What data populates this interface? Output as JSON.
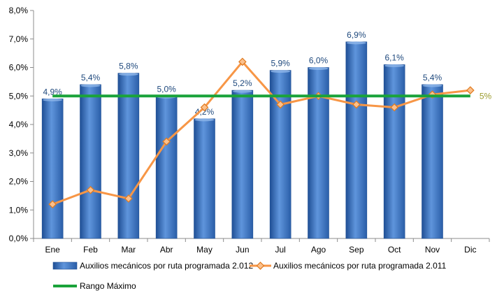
{
  "chart_data": {
    "type": "bar",
    "categories": [
      "Ene",
      "Feb",
      "Mar",
      "Abr",
      "May",
      "Jun",
      "Jul",
      "Ago",
      "Sep",
      "Oct",
      "Nov",
      "Dic"
    ],
    "ylim": [
      0,
      8
    ],
    "y_ticks": [
      "0,0%",
      "1,0%",
      "2,0%",
      "3,0%",
      "4,0%",
      "5,0%",
      "6,0%",
      "7,0%",
      "8,0%"
    ],
    "y_tick_values": [
      0,
      1,
      2,
      3,
      4,
      5,
      6,
      7,
      8
    ],
    "grid": false,
    "legend_position": "bottom",
    "series": [
      {
        "name": "Auxilios mecánicos por ruta programada 2.012",
        "type": "bar",
        "color": "#3a75c4",
        "values": [
          4.9,
          5.4,
          5.8,
          5.0,
          4.2,
          5.2,
          5.9,
          6.0,
          6.9,
          6.1,
          5.4,
          null
        ],
        "labels": [
          "4,9%",
          "5,4%",
          "5,8%",
          "5,0%",
          "4,2%",
          "5,2%",
          "5,9%",
          "6,0%",
          "6,9%",
          "6,1%",
          "5,4%",
          ""
        ]
      },
      {
        "name": "Auxilios mecánicos por ruta programada 2.011",
        "type": "line",
        "color": "#f79646",
        "values": [
          1.2,
          1.7,
          1.4,
          3.4,
          4.6,
          6.2,
          4.7,
          5.0,
          4.7,
          4.6,
          5.05,
          5.2
        ]
      },
      {
        "name": "Rango Máximo",
        "type": "line",
        "color": "#1aa33a",
        "values": [
          5,
          5,
          5,
          5,
          5,
          5,
          5,
          5,
          5,
          5,
          5,
          5
        ],
        "end_label": "5%"
      }
    ]
  }
}
